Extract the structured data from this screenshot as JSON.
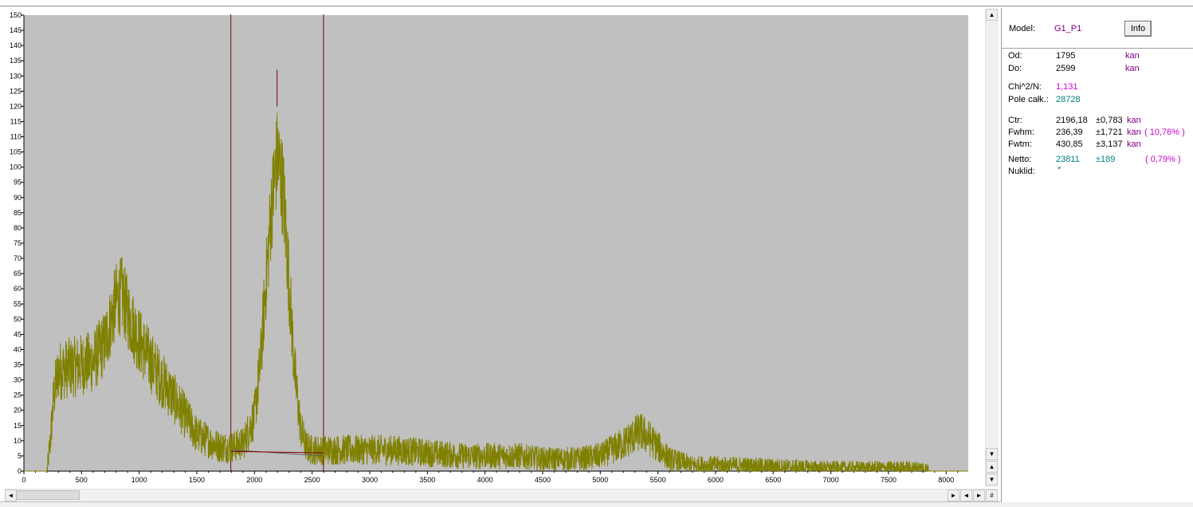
{
  "chart_data": {
    "type": "line",
    "title": "",
    "xlabel": "",
    "ylabel": "",
    "xlim": [
      0,
      8192
    ],
    "ylim": [
      0,
      150
    ],
    "x_ticks": [
      0,
      500,
      1000,
      1500,
      2000,
      2500,
      3000,
      3500,
      4000,
      4500,
      5000,
      5500,
      6000,
      6500,
      7000,
      7500,
      8000
    ],
    "y_ticks": [
      0,
      5,
      10,
      15,
      20,
      25,
      30,
      35,
      40,
      45,
      50,
      55,
      60,
      65,
      70,
      75,
      80,
      85,
      90,
      95,
      100,
      105,
      110,
      115,
      120,
      125,
      130,
      135,
      140,
      145,
      150
    ],
    "grid": false,
    "series": [
      {
        "color": "#808000",
        "x": [
          0,
          200,
          230,
          260,
          300,
          400,
          500,
          600,
          700,
          800,
          850,
          900,
          1000,
          1100,
          1200,
          1300,
          1400,
          1500,
          1600,
          1700,
          1800,
          1900,
          2000,
          2050,
          2100,
          2150,
          2200,
          2250,
          2300,
          2350,
          2400,
          2450,
          2500,
          2600,
          2800,
          3000,
          3200,
          3500,
          3800,
          4000,
          4300,
          4500,
          4800,
          5000,
          5200,
          5300,
          5350,
          5450,
          5600,
          5800,
          6000,
          6500,
          7000,
          7500,
          7800,
          7850,
          7860,
          8192
        ],
        "y": [
          0,
          0,
          10,
          25,
          33,
          34,
          35,
          36,
          42,
          56,
          58,
          52,
          43,
          36,
          30,
          24,
          18,
          12,
          10,
          8,
          8,
          9,
          18,
          35,
          62,
          88,
          104,
          92,
          62,
          32,
          14,
          8,
          7,
          7,
          7,
          7,
          7,
          6,
          5,
          5,
          5,
          4,
          4,
          5,
          9,
          12,
          13,
          10,
          4,
          2,
          2,
          1.5,
          1,
          1,
          1,
          0.5,
          0,
          0
        ]
      }
    ],
    "markers": {
      "region_start": 1795,
      "region_end": 2599,
      "peak_line_x": 2196,
      "peak_line_y_top": 132,
      "peak_line_y_bottom": 120,
      "region_line_color": "#800000",
      "background_line": {
        "x": [
          1795,
          2599
        ],
        "y": [
          7,
          5
        ]
      },
      "fit_baseline": {
        "x": [
          1795,
          2599
        ],
        "y": [
          6.5,
          6
        ]
      }
    },
    "plot_background": "#c0c0c0"
  },
  "panel": {
    "model_label": "Model:",
    "model_value": "G1_P1",
    "info_button": "Info",
    "od_label": "Od:",
    "od_value": "1795",
    "od_unit": "kan",
    "do_label": "Do:",
    "do_value": "2599",
    "do_unit": "kan",
    "chi_label": "Chi^2/N:",
    "chi_value": "1,131",
    "pole_label": "Pole całk.:",
    "pole_value": "28728",
    "ctr_label": "Ctr:",
    "ctr_value": "2196,18",
    "ctr_err": "±0,783",
    "ctr_unit": "kan",
    "fwhm_label": "Fwhm:",
    "fwhm_value": "236,39",
    "fwhm_err": "±1,721",
    "fwhm_unit": "kan",
    "fwhm_pct": "( 10,76% )",
    "fwtm_label": "Fwtm:",
    "fwtm_value": "430,85",
    "fwtm_err": "±3,137",
    "fwtm_unit": "kan",
    "netto_label": "Netto:",
    "netto_value": "23811",
    "netto_err": "±189",
    "netto_pct": "( 0,79% )",
    "nuklid_label": "Nuklid:",
    "nuklid_value": "*"
  },
  "scroll": {
    "up_arrow": "▲",
    "down_arrow": "▼",
    "left_arrow": "◄",
    "right_arrow": "►",
    "corner": "#"
  }
}
